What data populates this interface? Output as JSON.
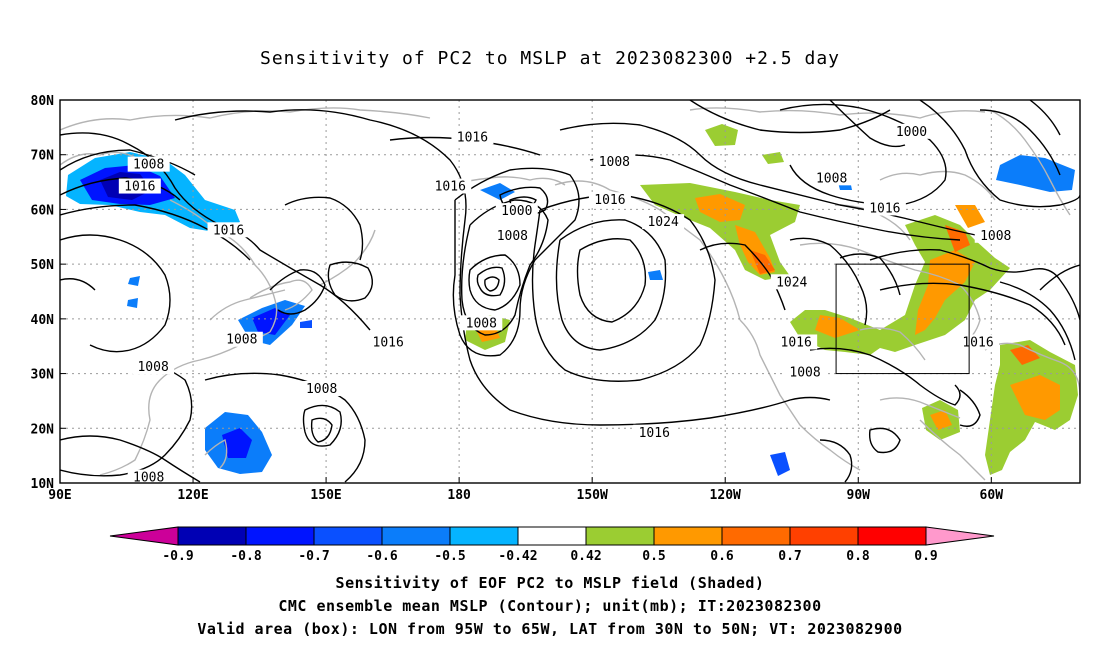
{
  "title": "Sensitivity of PC2 to MSLP at 2023082300 +2.5 day",
  "captions": [
    "Sensitivity of EOF PC2 to MSLP field (Shaded)",
    "CMC ensemble mean MSLP (Contour); unit(mb); IT:2023082300",
    "Valid area (box): LON from 95W to 65W, LAT from 30N to 50N; VT: 2023082900"
  ],
  "map": {
    "lon_labels": [
      "90E",
      "120E",
      "150E",
      "180",
      "150W",
      "120W",
      "90W",
      "60W"
    ],
    "lat_labels": [
      "80N",
      "70N",
      "60N",
      "50N",
      "40N",
      "30N",
      "20N",
      "10N"
    ],
    "lon_range": [
      90,
      320
    ],
    "lat_range": [
      10,
      80
    ],
    "valid_box": {
      "lon": [
        265,
        295
      ],
      "lat": [
        30,
        50
      ]
    },
    "contour_labels": [
      {
        "text": "1016",
        "lon": 183,
        "lat": 73
      },
      {
        "text": "1000",
        "lon": 282,
        "lat": 74
      },
      {
        "text": "1008",
        "lon": 110,
        "lat": 68
      },
      {
        "text": "1008",
        "lon": 215,
        "lat": 68.5
      },
      {
        "text": "1016",
        "lon": 108,
        "lat": 64
      },
      {
        "text": "1016",
        "lon": 178,
        "lat": 64
      },
      {
        "text": "1008",
        "lon": 264,
        "lat": 65.5
      },
      {
        "text": "1016",
        "lon": 214,
        "lat": 61.5
      },
      {
        "text": "1000",
        "lon": 193,
        "lat": 59.5
      },
      {
        "text": "1016",
        "lon": 276,
        "lat": 60
      },
      {
        "text": "1024",
        "lon": 226,
        "lat": 57.5
      },
      {
        "text": "1016",
        "lon": 128,
        "lat": 56
      },
      {
        "text": "1008",
        "lon": 192,
        "lat": 55
      },
      {
        "text": "1008",
        "lon": 301,
        "lat": 55
      },
      {
        "text": "1024",
        "lon": 255,
        "lat": 46.5
      },
      {
        "text": "1008",
        "lon": 185,
        "lat": 39
      },
      {
        "text": "1008",
        "lon": 131,
        "lat": 36
      },
      {
        "text": "1016",
        "lon": 164,
        "lat": 35.5
      },
      {
        "text": "1016",
        "lon": 256,
        "lat": 35.5
      },
      {
        "text": "1016",
        "lon": 297,
        "lat": 35.5
      },
      {
        "text": "1008",
        "lon": 111,
        "lat": 31
      },
      {
        "text": "1008",
        "lon": 258,
        "lat": 30
      },
      {
        "text": "1008",
        "lon": 149,
        "lat": 27
      },
      {
        "text": "1016",
        "lon": 224,
        "lat": 19
      },
      {
        "text": "1008",
        "lon": 110,
        "lat": 10.8
      }
    ]
  },
  "colorbar": {
    "labels": [
      "-0.9",
      "-0.8",
      "-0.7",
      "-0.6",
      "-0.5",
      "-0.42",
      "0.42",
      "0.5",
      "0.6",
      "0.7",
      "0.8",
      "0.9"
    ],
    "colors": [
      "#0000b4",
      "#0014ff",
      "#0a50ff",
      "#0b7dfa",
      "#05b4ff",
      "#ffffff",
      "#9bcd32",
      "#ff9900",
      "#ff6a00",
      "#ff4000",
      "#ff0000"
    ],
    "low_extend_color": "#cc0099",
    "high_extend_color": "#ff99cc"
  }
}
